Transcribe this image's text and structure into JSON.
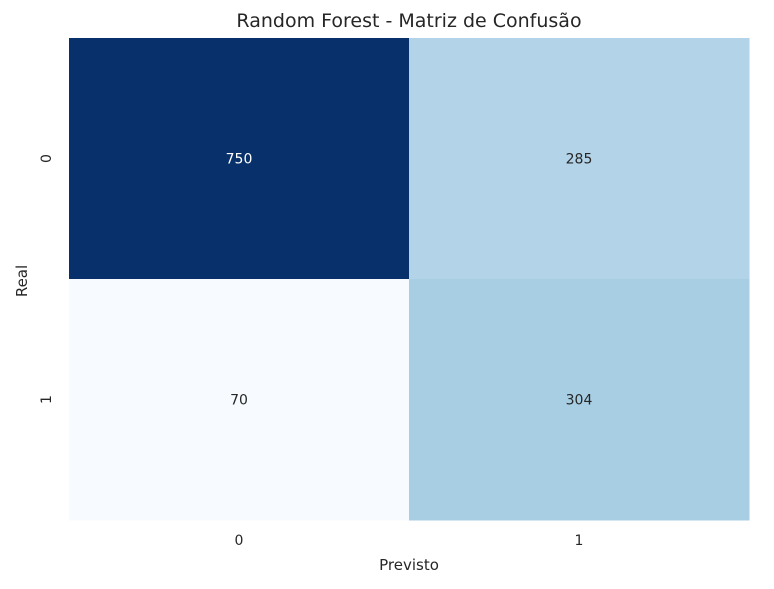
{
  "chart_data": {
    "type": "heatmap",
    "title": "Random Forest - Matriz de Confusão",
    "xlabel": "Previsto",
    "ylabel": "Real",
    "x_categories": [
      "0",
      "1"
    ],
    "y_categories": [
      "0",
      "1"
    ],
    "values": [
      [
        750,
        285
      ],
      [
        70,
        304
      ]
    ],
    "colormap": "Blues",
    "colorbar": false,
    "annotations": true,
    "colors": {
      "cells": [
        [
          "#08306b",
          "#b3d3e8"
        ],
        [
          "#f7fbff",
          "#a8cee4"
        ]
      ],
      "dark_text": "#262626",
      "light_text": "#ffffff"
    }
  }
}
